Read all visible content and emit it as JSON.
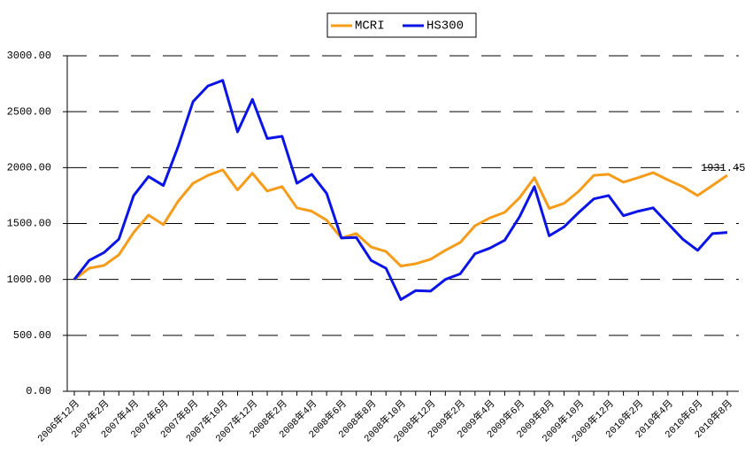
{
  "chart_data": {
    "type": "line",
    "categories": [
      "2006年12月",
      null,
      "2007年2月",
      null,
      "2007年4月",
      null,
      "2007年6月",
      null,
      "2007年8月",
      null,
      "2007年10月",
      null,
      "2007年12月",
      null,
      "2008年2月",
      null,
      "2008年4月",
      null,
      "2008年6月",
      null,
      "2008年8月",
      null,
      "2008年10月",
      null,
      "2008年12月",
      null,
      "2009年2月",
      null,
      "2009年4月",
      null,
      "2009年6月",
      null,
      "2009年8月",
      null,
      "2009年10月",
      null,
      "2009年12月",
      null,
      "2010年2月",
      null,
      "2010年4月",
      null,
      "2010年6月",
      null,
      "2010年8月"
    ],
    "series": [
      {
        "name": "MCRI",
        "color": "#f59c1a",
        "values": [
          1000,
          1100,
          1125,
          1220,
          1420,
          1575,
          1490,
          1700,
          1860,
          1930,
          1980,
          1800,
          1950,
          1790,
          1830,
          1640,
          1610,
          1530,
          1370,
          1410,
          1290,
          1250,
          1120,
          1140,
          1180,
          1260,
          1330,
          1480,
          1550,
          1600,
          1730,
          1910,
          1635,
          1680,
          1790,
          1930,
          1940,
          1870,
          1910,
          1955,
          1890,
          1830,
          1750,
          1840,
          1931.45
        ]
      },
      {
        "name": "HS300",
        "color": "#0a14e6",
        "values": [
          1000,
          1170,
          1240,
          1360,
          1750,
          1920,
          1840,
          2190,
          2590,
          2730,
          2780,
          2320,
          2610,
          2260,
          2280,
          1860,
          1940,
          1770,
          1370,
          1375,
          1170,
          1100,
          820,
          900,
          895,
          1000,
          1050,
          1230,
          1280,
          1350,
          1560,
          1830,
          1390,
          1470,
          1600,
          1720,
          1750,
          1570,
          1610,
          1640,
          1500,
          1360,
          1260,
          1410,
          1420
        ]
      }
    ],
    "ylim": [
      0,
      3000
    ],
    "yticks": [
      {
        "value": 0,
        "label": "0.00"
      },
      {
        "value": 500,
        "label": "500.00"
      },
      {
        "value": 1000,
        "label": "1000.00"
      },
      {
        "value": 1500,
        "label": "1500.00"
      },
      {
        "value": 2000,
        "label": "2000.00"
      },
      {
        "value": 2500,
        "label": "2500.00"
      },
      {
        "value": 3000,
        "label": "3000.00"
      }
    ],
    "grid": true,
    "legend": "top"
  }
}
